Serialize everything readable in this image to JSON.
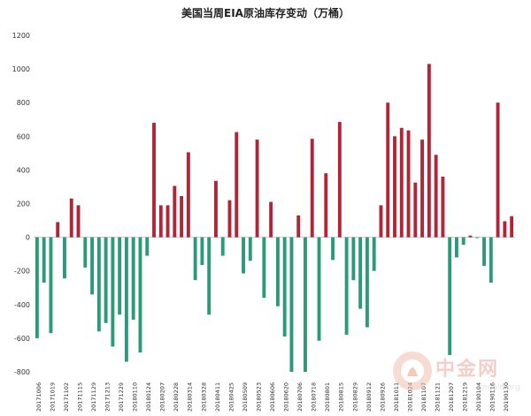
{
  "chart_data": {
    "type": "bar",
    "title": "美国当周EIA原油库存变动（万桶）",
    "xlabel": "",
    "ylabel": "",
    "ylim": [
      -800,
      1200
    ],
    "yticks": [
      -800,
      -600,
      -400,
      -200,
      0,
      200,
      400,
      600,
      800,
      1000,
      1200
    ],
    "grid": false,
    "positive_color": "#b22536",
    "negative_color": "#2a9a78",
    "tick_labels": [
      "20171006",
      "20171019",
      "20171102",
      "20171115",
      "20171129",
      "20171213",
      "20171229",
      "20180110",
      "20180124",
      "20180207",
      "20180228",
      "20180314",
      "20180328",
      "20180411",
      "20180425",
      "20180509",
      "20180523",
      "20180606",
      "20180620",
      "20180706",
      "20180718",
      "20180801",
      "20180815",
      "20180829",
      "20180912",
      "20180926",
      "20181011",
      "20181024",
      "20181107",
      "20181121",
      "20181207",
      "20181219",
      "20190104",
      "20190116",
      "20190130"
    ],
    "values": [
      -600,
      -270,
      -570,
      90,
      -245,
      230,
      190,
      -180,
      -340,
      -560,
      -510,
      -650,
      -460,
      -740,
      -490,
      -685,
      -110,
      680,
      190,
      190,
      305,
      245,
      505,
      -255,
      -165,
      -460,
      335,
      -110,
      220,
      625,
      -215,
      -140,
      580,
      -360,
      210,
      -410,
      -590,
      -800,
      130,
      -800,
      585,
      -615,
      380,
      -135,
      685,
      -580,
      -255,
      -425,
      -535,
      -200,
      190,
      800,
      600,
      650,
      635,
      325,
      580,
      1030,
      490,
      360,
      -700,
      -120,
      -45,
      10,
      -5,
      -170,
      -270,
      800,
      95,
      125
    ]
  },
  "watermark": {
    "text": "中金网",
    "subtext": "cngold.org"
  }
}
